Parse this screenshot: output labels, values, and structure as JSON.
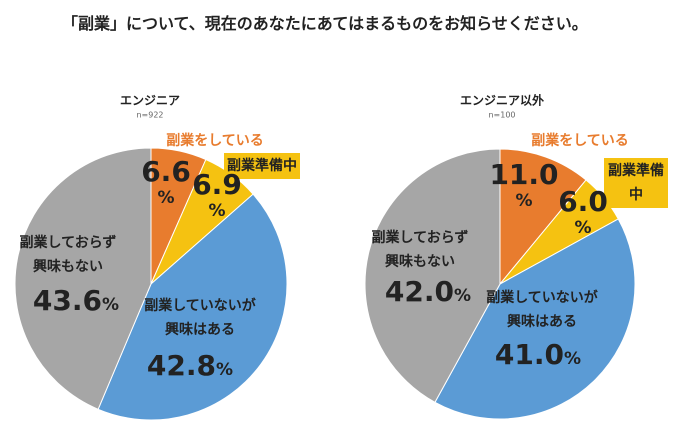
{
  "title": "「副業」について、現在のあなたにあてはまるものをお知らせください。",
  "chart_data": [
    {
      "type": "pie",
      "title": "エンジニア",
      "subtitle": "n=922",
      "categories": [
        "副業をしている",
        "副業準備中",
        "副業していないが\n興味はある",
        "副業しておらず\n興味もない"
      ],
      "values": [
        6.6,
        6.9,
        42.8,
        43.6
      ],
      "value_labels": [
        "6.6%",
        "6.9%",
        "42.8%",
        "43.6%"
      ],
      "colors": [
        "#e87c2e",
        "#f5c211",
        "#5b9bd5",
        "#a6a6a6"
      ]
    },
    {
      "type": "pie",
      "title": "エンジニア以外",
      "subtitle": "n=100",
      "categories": [
        "副業をしている",
        "副業準備中",
        "副業していないが\n興味はある",
        "副業しておらず\n興味もない"
      ],
      "values": [
        11.0,
        6.0,
        41.0,
        42.0
      ],
      "value_labels": [
        "11.0%",
        "6.0%",
        "41.0%",
        "42.0%"
      ],
      "colors": [
        "#e87c2e",
        "#f5c211",
        "#5b9bd5",
        "#a6a6a6"
      ]
    }
  ]
}
